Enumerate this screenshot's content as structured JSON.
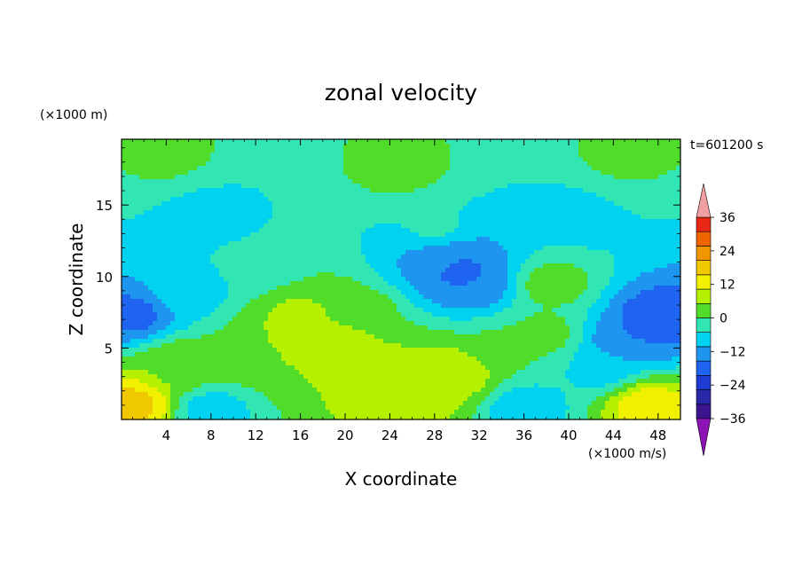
{
  "chart_data": {
    "type": "heatmap",
    "title": "zonal velocity",
    "xlabel": "X coordinate",
    "ylabel": "Z coordinate",
    "x_unit": "(×1000 m/s)",
    "y_unit": "(×1000 m)",
    "time_label": "t=601200 s",
    "xlim": [
      0,
      50
    ],
    "ylim": [
      0,
      19.6
    ],
    "x_ticks": [
      4,
      8,
      12,
      16,
      20,
      24,
      28,
      32,
      36,
      40,
      44,
      48
    ],
    "y_ticks": [
      5,
      10,
      15
    ],
    "colorbar": {
      "levels": [
        -42,
        -36,
        -30,
        -24,
        -18,
        -12,
        -6,
        0,
        6,
        12,
        18,
        24,
        30,
        36,
        42
      ],
      "tick_values": [
        36,
        24,
        12,
        0,
        -12,
        -24,
        -36
      ],
      "tick_labels": [
        "36",
        "24",
        "12",
        "0",
        "−12",
        "−24",
        "−36"
      ],
      "colors": [
        "#3c1490",
        "#2828a8",
        "#1e3cd2",
        "#1e64f0",
        "#1e96f0",
        "#00d2f0",
        "#32e6b4",
        "#50dc28",
        "#b4f000",
        "#f0f000",
        "#f0c800",
        "#f09600",
        "#f06400",
        "#e62814"
      ],
      "under_color": "#8c14b4",
      "over_color": "#f0a0a0"
    },
    "features": [
      {
        "x": 25,
        "y": 17.5,
        "value": 2
      },
      {
        "x": 4,
        "y": 18.5,
        "value": 1
      },
      {
        "x": 45,
        "y": 18.5,
        "value": 1
      },
      {
        "x": 8,
        "y": 14,
        "value": -9
      },
      {
        "x": 40,
        "y": 14,
        "value": -8
      },
      {
        "x": 28,
        "y": 13.5,
        "value": -5
      },
      {
        "x": 30,
        "y": 10.5,
        "value": -20
      },
      {
        "x": 29,
        "y": 11,
        "value": -16
      },
      {
        "x": 31.5,
        "y": 9.5,
        "value": -18
      },
      {
        "x": 38.5,
        "y": 9.5,
        "value": 3
      },
      {
        "x": 38,
        "y": 6,
        "value": 2
      },
      {
        "x": 16,
        "y": 7,
        "value": 8
      },
      {
        "x": 19,
        "y": 5.5,
        "value": 10
      },
      {
        "x": 13,
        "y": 4.5,
        "value": 6
      },
      {
        "x": 27,
        "y": 2.5,
        "value": 12
      },
      {
        "x": 24,
        "y": 2.2,
        "value": 9
      },
      {
        "x": 30,
        "y": 3.2,
        "value": 10
      },
      {
        "x": 21,
        "y": 7.5,
        "value": 3
      },
      {
        "x": 6,
        "y": 9,
        "value": -9
      },
      {
        "x": 5,
        "y": 3.8,
        "value": 5
      },
      {
        "x": 1,
        "y": 1,
        "value": 20
      },
      {
        "x": 47,
        "y": 1,
        "value": 16
      },
      {
        "x": 45,
        "y": 5.5,
        "value": -18
      },
      {
        "x": 48,
        "y": 7,
        "value": -24
      },
      {
        "x": 1,
        "y": 7.3,
        "value": -20
      },
      {
        "x": 43,
        "y": 3.5,
        "value": -8
      },
      {
        "x": 8,
        "y": 0.6,
        "value": -9
      },
      {
        "x": 36,
        "y": 0.8,
        "value": -10
      },
      {
        "x": 34.5,
        "y": 5,
        "value": 1
      },
      {
        "x": 12,
        "y": 11,
        "value": -4
      }
    ]
  }
}
